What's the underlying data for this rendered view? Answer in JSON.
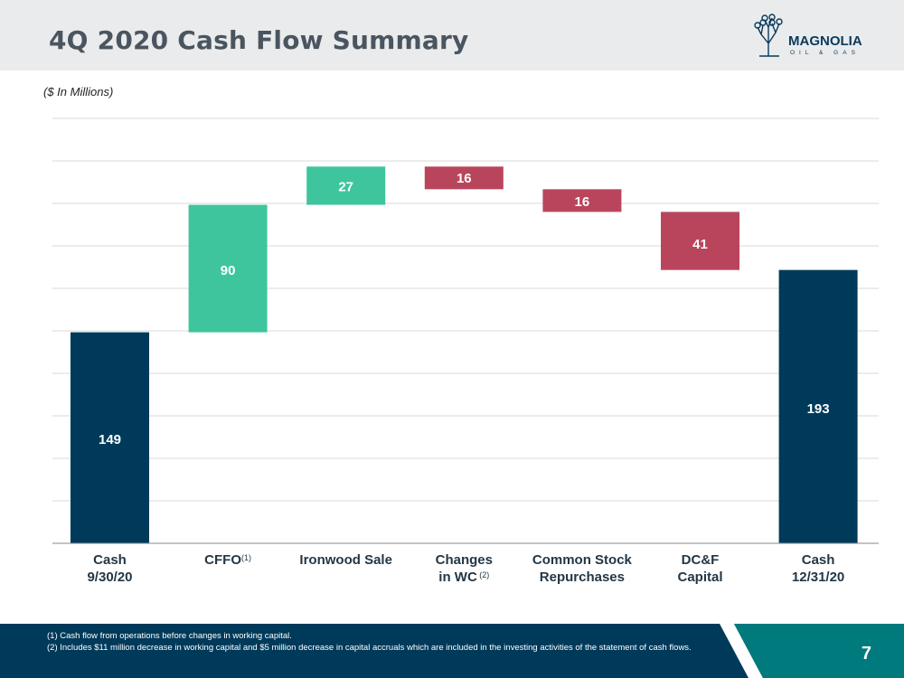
{
  "header": {
    "title": "4Q 2020 Cash Flow Summary",
    "logo_text": "MAGNOLIA",
    "logo_subtext": "OIL & GAS"
  },
  "subtitle": "($ In Millions)",
  "colors": {
    "navy": "#003a5a",
    "green": "#3fc59e",
    "red": "#b9455c",
    "header_bg": "#e9ebec",
    "footer_navy": "#003a5a",
    "footer_teal": "#007a7c"
  },
  "chart_data": {
    "type": "bar",
    "subtype": "waterfall",
    "unit": "$ In Millions",
    "grid": true,
    "categories": [
      {
        "line1": "Cash",
        "line2": "9/30/20",
        "sup": ""
      },
      {
        "line1": "CFFO",
        "line2": "",
        "sup": "(1)"
      },
      {
        "line1": "Ironwood Sale",
        "line2": "",
        "sup": ""
      },
      {
        "line1": "Changes",
        "line2": "in WC",
        "sup": "(2)"
      },
      {
        "line1": "Common Stock",
        "line2": "Repurchases",
        "sup": ""
      },
      {
        "line1": "DC&F",
        "line2": "Capital",
        "sup": ""
      },
      {
        "line1": "Cash",
        "line2": "12/31/20",
        "sup": ""
      }
    ],
    "bars": [
      {
        "label": "149",
        "start": 0,
        "end": 149,
        "kind": "total"
      },
      {
        "label": "90",
        "start": 149,
        "end": 239,
        "kind": "increase"
      },
      {
        "label": "27",
        "start": 239,
        "end": 266,
        "kind": "increase"
      },
      {
        "label": "16",
        "start": 266,
        "end": 250,
        "kind": "decrease"
      },
      {
        "label": "16",
        "start": 250,
        "end": 234,
        "kind": "decrease"
      },
      {
        "label": "41",
        "start": 234,
        "end": 193,
        "kind": "decrease"
      },
      {
        "label": "193",
        "start": 0,
        "end": 193,
        "kind": "total"
      }
    ],
    "ylim": [
      0,
      300
    ]
  },
  "footnotes": [
    "(1)   Cash flow from operations before changes in working capital.",
    "(2)   Includes $11 million decrease in working capital and $5 million decrease in capital accruals which are included in the investing activities of the statement of cash flows."
  ],
  "page_number": "7"
}
